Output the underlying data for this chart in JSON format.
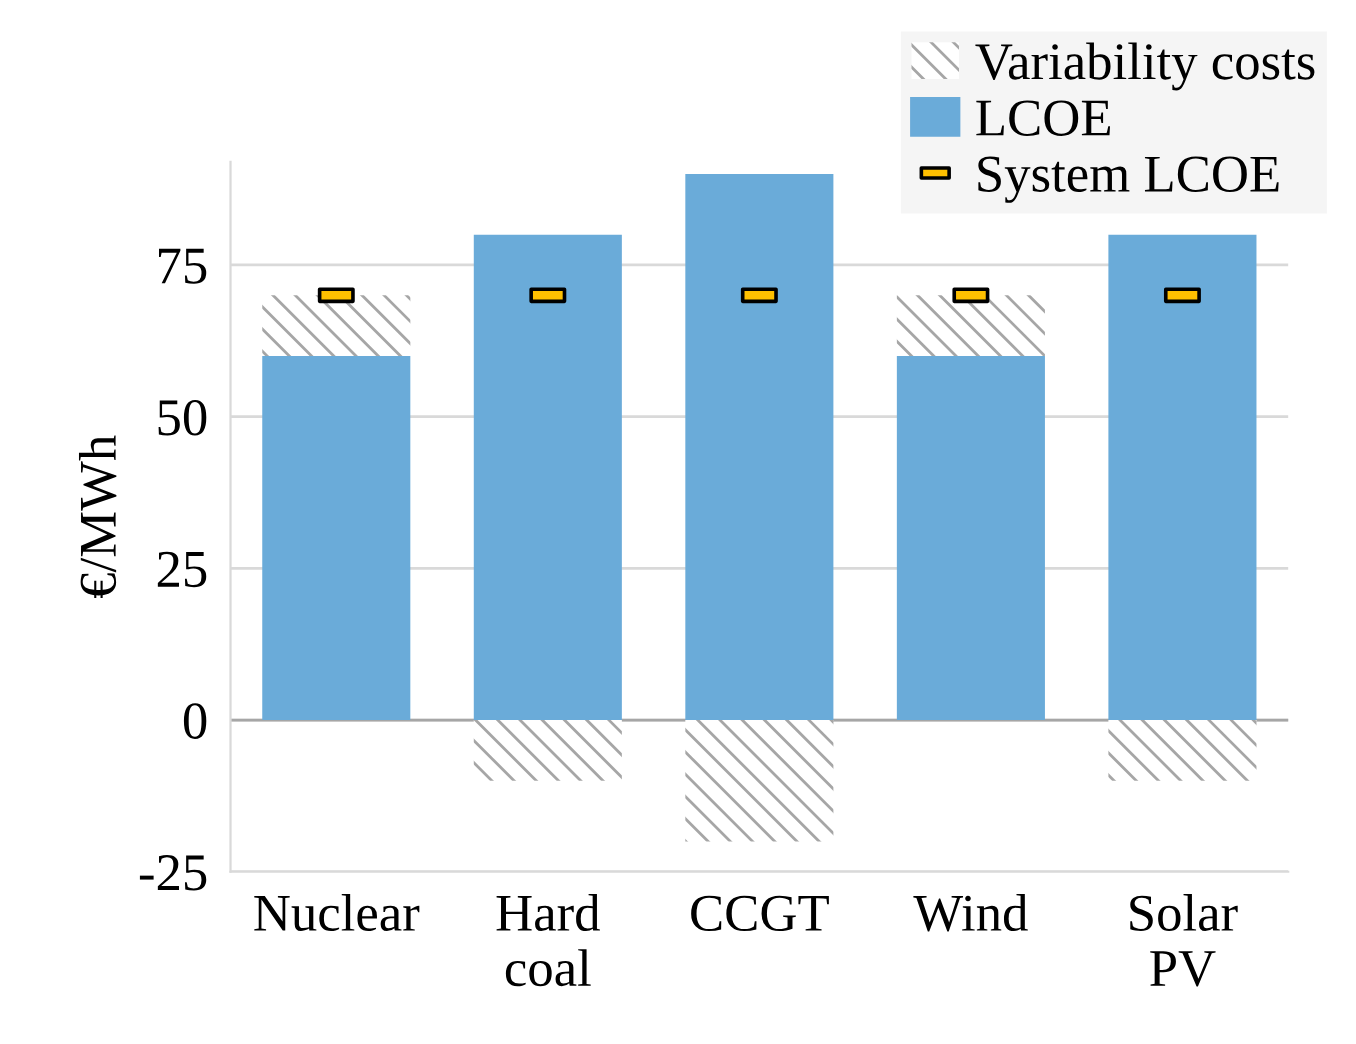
{
  "chart_data": {
    "type": "bar",
    "ylabel": "€/MWh",
    "categories": [
      "Nuclear",
      "Hard\ncoal",
      "CCGT",
      "Wind",
      "Solar\nPV"
    ],
    "stacked": true,
    "series": [
      {
        "name": "LCOE",
        "color": "#6aabd9",
        "values": [
          60,
          80,
          90,
          60,
          80
        ]
      },
      {
        "name": "Variability costs",
        "color": "#a6a6a6",
        "values": [
          10,
          -10,
          -20,
          10,
          -10
        ]
      },
      {
        "name": "System LCOE",
        "type": "scatter",
        "marker": "square",
        "color": "#ffc000",
        "values": [
          70,
          70,
          70,
          70,
          70
        ]
      }
    ],
    "ylim": [
      -25,
      92
    ],
    "yticks": [
      -25,
      0,
      25,
      50,
      75
    ],
    "grid": "y",
    "legend": "top right"
  }
}
